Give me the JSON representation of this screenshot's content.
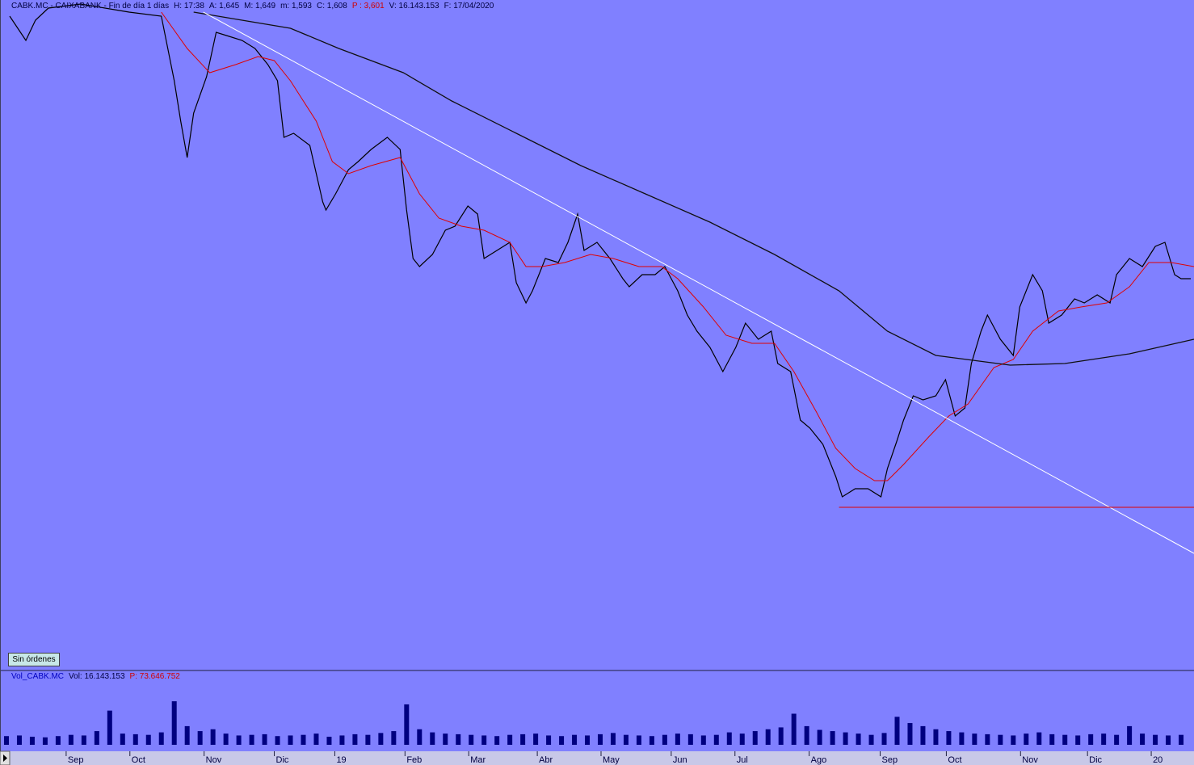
{
  "chart_data": [
    {
      "type": "line",
      "title_items": [
        {
          "text": "CABK.MC - CAIXABANK - Fin de día 1 días",
          "color": "#000040"
        },
        {
          "text": "H: 17:38",
          "color": "#000040"
        },
        {
          "text": "A: 1,645",
          "color": "#000040"
        },
        {
          "text": "M: 1,649",
          "color": "#000040"
        },
        {
          "text": "m: 1,593",
          "color": "#000040"
        },
        {
          "text": "C: 1,608",
          "color": "#000040"
        },
        {
          "text": "P : 3,601",
          "color": "#d00000"
        },
        {
          "text": "V: 16.143.153",
          "color": "#000040"
        },
        {
          "text": "F: 17/04/2020",
          "color": "#000040"
        }
      ],
      "xlim": [
        0,
        370
      ],
      "ylim": [
        1.925,
        4.0
      ],
      "series": [
        {
          "color": "#000000",
          "width": 1.2,
          "x": [
            3,
            8,
            11,
            15,
            25,
            40,
            50,
            54,
            56,
            58,
            60,
            64,
            67,
            71,
            75,
            79,
            83,
            86,
            88,
            91,
            96,
            100,
            101,
            104,
            108,
            111,
            115,
            120,
            124,
            126,
            128,
            130,
            134,
            138,
            141,
            145,
            148,
            150,
            154,
            158,
            160,
            163,
            165,
            169,
            173,
            176,
            179,
            181,
            185,
            189,
            193,
            195,
            199,
            203,
            206,
            210,
            213,
            216,
            220,
            224,
            228,
            231,
            235,
            239,
            241,
            245,
            248,
            251,
            255,
            259,
            261,
            265,
            269,
            273,
            275,
            278,
            280,
            283,
            286,
            290,
            293,
            296,
            299,
            301,
            304,
            306,
            310,
            314,
            316,
            320,
            323,
            325,
            329,
            333,
            336,
            340,
            344,
            346,
            350,
            354,
            358,
            361,
            364,
            366,
            369
          ],
          "values": [
            3.95,
            3.875,
            3.9375,
            3.975,
            3.9875,
            3.9625,
            3.95,
            3.75,
            3.625,
            3.5125,
            3.65,
            3.7625,
            3.9,
            3.8875,
            3.875,
            3.85,
            3.8,
            3.75,
            3.575,
            3.5875,
            3.55,
            3.375,
            3.35,
            3.4,
            3.475,
            3.5,
            3.5375,
            3.575,
            3.5375,
            3.35,
            3.2,
            3.175,
            3.2125,
            3.2875,
            3.3,
            3.3625,
            3.3375,
            3.2,
            3.225,
            3.25,
            3.125,
            3.0625,
            3.1,
            3.2,
            3.1875,
            3.25,
            3.3375,
            3.225,
            3.25,
            3.2,
            3.1375,
            3.1125,
            3.15,
            3.15,
            3.175,
            3.1,
            3.025,
            2.975,
            2.925,
            2.85,
            2.925,
            3.0,
            2.95,
            2.975,
            2.875,
            2.85,
            2.7,
            2.675,
            2.625,
            2.525,
            2.4625,
            2.4875,
            2.4875,
            2.4625,
            2.55,
            2.6375,
            2.7,
            2.775,
            2.7625,
            2.775,
            2.825,
            2.7125,
            2.7375,
            2.875,
            2.975,
            3.025,
            2.95,
            2.9,
            3.05,
            3.15,
            3.1,
            3.0,
            3.025,
            3.075,
            3.0625,
            3.0875,
            3.0625,
            3.15,
            3.2,
            3.175,
            3.2375,
            3.25,
            3.15,
            3.1375,
            3.1375
          ]
        },
        {
          "color": "#e00000",
          "width": 1,
          "x": [
            50,
            58,
            65,
            73,
            80,
            85,
            90,
            98,
            103,
            108,
            115,
            124,
            130,
            136,
            143,
            150,
            158,
            163,
            168,
            175,
            183,
            190,
            198,
            205,
            210,
            218,
            225,
            233,
            240,
            246,
            253,
            259,
            265,
            271,
            275,
            280,
            288,
            294,
            300,
            308,
            314,
            320,
            328,
            335,
            343,
            350,
            356,
            363,
            370
          ],
          "values": [
            3.9625,
            3.85,
            3.775,
            3.8,
            3.825,
            3.8125,
            3.75,
            3.625,
            3.5,
            3.4625,
            3.4875,
            3.5125,
            3.4,
            3.325,
            3.3,
            3.2875,
            3.25,
            3.175,
            3.175,
            3.1875,
            3.2125,
            3.2,
            3.175,
            3.175,
            3.1375,
            3.05,
            2.9625,
            2.9375,
            2.9375,
            2.85,
            2.725,
            2.6125,
            2.55,
            2.5125,
            2.5125,
            2.5625,
            2.65,
            2.7125,
            2.75,
            2.8625,
            2.8875,
            2.975,
            3.0375,
            3.05,
            3.0625,
            3.1125,
            3.1875,
            3.1875,
            3.175
          ]
        },
        {
          "color": "#101010",
          "width": 1.3,
          "x": [
            60,
            75,
            90,
            105,
            125,
            140,
            160,
            180,
            200,
            220,
            240,
            260,
            275,
            290,
            313,
            330,
            350,
            370
          ],
          "values": [
            3.9625,
            3.9375,
            3.9125,
            3.85,
            3.775,
            3.6875,
            3.5875,
            3.4875,
            3.4,
            3.3125,
            3.2125,
            3.1,
            2.975,
            2.9,
            2.87,
            2.875,
            2.905,
            2.95
          ]
        },
        {
          "color": "#ffffff",
          "width": 1,
          "x": [
            63,
            370
          ],
          "values": [
            3.9625,
            2.2875
          ]
        },
        {
          "color": "#e00000",
          "width": 1,
          "x": [
            260,
            370
          ],
          "values": [
            2.43,
            2.43
          ]
        }
      ],
      "button": "Sin órdenes"
    },
    {
      "type": "bar",
      "title_items": [
        {
          "text": "Vol_CABK.MC",
          "color": "#0000c0"
        },
        {
          "text": "Vol: 16.143.153",
          "color": "#000040"
        },
        {
          "text": "P: 73.646.752",
          "color": "#d00000"
        }
      ],
      "color": "#000080",
      "xlim": [
        0,
        370
      ],
      "ylim": [
        0,
        100
      ],
      "x": [
        2,
        6,
        10,
        14,
        18,
        22,
        26,
        30,
        34,
        38,
        42,
        46,
        50,
        54,
        58,
        62,
        66,
        70,
        74,
        78,
        82,
        86,
        90,
        94,
        98,
        102,
        106,
        110,
        114,
        118,
        122,
        126,
        130,
        134,
        138,
        142,
        146,
        150,
        154,
        158,
        162,
        166,
        170,
        174,
        178,
        182,
        186,
        190,
        194,
        198,
        202,
        206,
        210,
        214,
        218,
        222,
        226,
        230,
        234,
        238,
        242,
        246,
        250,
        254,
        258,
        262,
        266,
        270,
        274,
        278,
        282,
        286,
        290,
        294,
        298,
        302,
        306,
        310,
        314,
        318,
        322,
        326,
        330,
        334,
        338,
        342,
        346,
        350,
        354,
        358,
        362,
        366
      ],
      "values": [
        14,
        15,
        13,
        12,
        14,
        16,
        15,
        22,
        55,
        18,
        17,
        16,
        20,
        70,
        30,
        22,
        25,
        18,
        15,
        16,
        17,
        14,
        15,
        16,
        18,
        13,
        15,
        17,
        16,
        19,
        22,
        65,
        25,
        20,
        18,
        17,
        16,
        15,
        14,
        16,
        17,
        18,
        15,
        14,
        16,
        15,
        17,
        19,
        16,
        15,
        14,
        16,
        18,
        17,
        15,
        16,
        20,
        18,
        22,
        25,
        28,
        50,
        30,
        24,
        22,
        20,
        18,
        16,
        19,
        45,
        35,
        30,
        25,
        22,
        20,
        18,
        17,
        16,
        15,
        18,
        20,
        17,
        16,
        15,
        17,
        18,
        16,
        30,
        18,
        16,
        15,
        16
      ],
      "xticks": [
        {
          "value": 20.5,
          "label": "Sep"
        },
        {
          "value": 40.25,
          "label": "Oct"
        },
        {
          "value": 63.25,
          "label": "Nov"
        },
        {
          "value": 85,
          "label": "Dic"
        },
        {
          "value": 103.75,
          "label": "19"
        },
        {
          "value": 125.5,
          "label": "Feb"
        },
        {
          "value": 145.25,
          "label": "Mar"
        },
        {
          "value": 166.5,
          "label": "Abr"
        },
        {
          "value": 186.25,
          "label": "May"
        },
        {
          "value": 208,
          "label": "Jun"
        },
        {
          "value": 227.75,
          "label": "Jul"
        },
        {
          "value": 250.75,
          "label": "Ago"
        },
        {
          "value": 272.75,
          "label": "Sep"
        },
        {
          "value": 293.25,
          "label": "Oct"
        },
        {
          "value": 316.25,
          "label": "Nov"
        },
        {
          "value": 337,
          "label": "Dic"
        },
        {
          "value": 356.75,
          "label": "20"
        }
      ]
    }
  ]
}
